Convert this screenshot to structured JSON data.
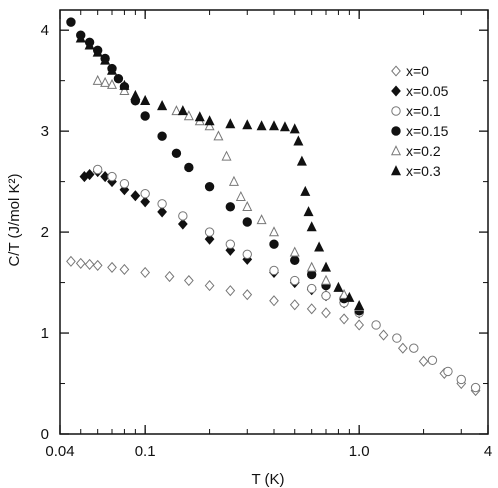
{
  "chart_data": {
    "type": "scatter",
    "xscale": "log",
    "xlim": [
      0.04,
      4
    ],
    "ylim": [
      0,
      4.2
    ],
    "xlabel": "T (K)",
    "ylabel": "C/T (J/mol K²)",
    "xticks": [
      {
        "value": 0.04,
        "label": "0.04"
      },
      {
        "value": 0.1,
        "label": "0.1"
      },
      {
        "value": 1.0,
        "label": "1.0"
      },
      {
        "value": 4,
        "label": "4"
      }
    ],
    "yticks": [
      {
        "value": 0,
        "label": "0"
      },
      {
        "value": 1,
        "label": "1"
      },
      {
        "value": 2,
        "label": "2"
      },
      {
        "value": 3,
        "label": "3"
      },
      {
        "value": 4,
        "label": "4"
      }
    ],
    "grid": false,
    "legend_position": "top-right",
    "series": [
      {
        "name": "x=0",
        "marker": "diamond-open",
        "points": [
          [
            0.045,
            1.71
          ],
          [
            0.05,
            1.69
          ],
          [
            0.055,
            1.68
          ],
          [
            0.06,
            1.67
          ],
          [
            0.07,
            1.65
          ],
          [
            0.08,
            1.63
          ],
          [
            0.1,
            1.6
          ],
          [
            0.13,
            1.56
          ],
          [
            0.16,
            1.52
          ],
          [
            0.2,
            1.47
          ],
          [
            0.25,
            1.42
          ],
          [
            0.3,
            1.38
          ],
          [
            0.4,
            1.32
          ],
          [
            0.5,
            1.28
          ],
          [
            0.6,
            1.24
          ],
          [
            0.7,
            1.2
          ],
          [
            0.85,
            1.14
          ],
          [
            1.0,
            1.08
          ],
          [
            1.3,
            0.98
          ],
          [
            1.6,
            0.85
          ],
          [
            2.0,
            0.72
          ],
          [
            2.5,
            0.6
          ],
          [
            3.0,
            0.5
          ],
          [
            3.5,
            0.43
          ]
        ]
      },
      {
        "name": "x=0.05",
        "marker": "diamond-filled",
        "points": [
          [
            0.052,
            2.55
          ],
          [
            0.055,
            2.57
          ],
          [
            0.06,
            2.6
          ],
          [
            0.065,
            2.55
          ],
          [
            0.07,
            2.5
          ],
          [
            0.08,
            2.42
          ],
          [
            0.09,
            2.36
          ],
          [
            0.1,
            2.3
          ],
          [
            0.12,
            2.2
          ],
          [
            0.15,
            2.08
          ],
          [
            0.2,
            1.93
          ],
          [
            0.25,
            1.82
          ],
          [
            0.3,
            1.73
          ],
          [
            0.4,
            1.6
          ],
          [
            0.5,
            1.5
          ],
          [
            0.6,
            1.43
          ],
          [
            0.7,
            1.37
          ],
          [
            0.85,
            1.3
          ],
          [
            1.0,
            1.2
          ]
        ]
      },
      {
        "name": "x=0.1",
        "marker": "circle-open",
        "points": [
          [
            0.06,
            2.62
          ],
          [
            0.07,
            2.55
          ],
          [
            0.08,
            2.48
          ],
          [
            0.1,
            2.38
          ],
          [
            0.12,
            2.28
          ],
          [
            0.15,
            2.16
          ],
          [
            0.2,
            2.0
          ],
          [
            0.25,
            1.88
          ],
          [
            0.3,
            1.78
          ],
          [
            0.4,
            1.62
          ],
          [
            0.5,
            1.52
          ],
          [
            0.6,
            1.44
          ],
          [
            0.7,
            1.37
          ],
          [
            0.85,
            1.3
          ],
          [
            1.0,
            1.2
          ],
          [
            1.2,
            1.08
          ],
          [
            1.5,
            0.95
          ],
          [
            1.8,
            0.85
          ],
          [
            2.2,
            0.73
          ],
          [
            2.6,
            0.62
          ],
          [
            3.0,
            0.54
          ],
          [
            3.5,
            0.46
          ]
        ]
      },
      {
        "name": "x=0.15",
        "marker": "circle-filled",
        "points": [
          [
            0.045,
            4.08
          ],
          [
            0.05,
            3.95
          ],
          [
            0.055,
            3.88
          ],
          [
            0.06,
            3.8
          ],
          [
            0.065,
            3.72
          ],
          [
            0.07,
            3.62
          ],
          [
            0.075,
            3.52
          ],
          [
            0.08,
            3.44
          ],
          [
            0.09,
            3.3
          ],
          [
            0.1,
            3.15
          ],
          [
            0.12,
            2.95
          ],
          [
            0.14,
            2.78
          ],
          [
            0.16,
            2.64
          ],
          [
            0.2,
            2.45
          ],
          [
            0.25,
            2.25
          ],
          [
            0.3,
            2.1
          ],
          [
            0.4,
            1.88
          ],
          [
            0.5,
            1.72
          ],
          [
            0.6,
            1.58
          ],
          [
            0.7,
            1.47
          ],
          [
            0.85,
            1.34
          ],
          [
            1.0,
            1.22
          ]
        ]
      },
      {
        "name": "x=0.2",
        "marker": "triangle-open",
        "points": [
          [
            0.06,
            3.5
          ],
          [
            0.065,
            3.48
          ],
          [
            0.07,
            3.46
          ],
          [
            0.08,
            3.4
          ],
          [
            0.09,
            3.35
          ],
          [
            0.1,
            3.3
          ],
          [
            0.12,
            3.25
          ],
          [
            0.14,
            3.2
          ],
          [
            0.16,
            3.15
          ],
          [
            0.18,
            3.1
          ],
          [
            0.2,
            3.05
          ],
          [
            0.22,
            2.95
          ],
          [
            0.24,
            2.75
          ],
          [
            0.26,
            2.5
          ],
          [
            0.28,
            2.35
          ],
          [
            0.3,
            2.25
          ],
          [
            0.35,
            2.12
          ],
          [
            0.4,
            2.0
          ],
          [
            0.5,
            1.8
          ],
          [
            0.6,
            1.65
          ],
          [
            0.7,
            1.52
          ],
          [
            0.85,
            1.38
          ],
          [
            1.0,
            1.26
          ]
        ]
      },
      {
        "name": "x=0.3",
        "marker": "triangle-filled",
        "points": [
          [
            0.05,
            3.92
          ],
          [
            0.055,
            3.85
          ],
          [
            0.06,
            3.78
          ],
          [
            0.065,
            3.7
          ],
          [
            0.07,
            3.6
          ],
          [
            0.08,
            3.45
          ],
          [
            0.09,
            3.35
          ],
          [
            0.1,
            3.3
          ],
          [
            0.12,
            3.25
          ],
          [
            0.15,
            3.2
          ],
          [
            0.18,
            3.14
          ],
          [
            0.2,
            3.1
          ],
          [
            0.25,
            3.07
          ],
          [
            0.3,
            3.06
          ],
          [
            0.35,
            3.05
          ],
          [
            0.4,
            3.05
          ],
          [
            0.45,
            3.04
          ],
          [
            0.5,
            3.02
          ],
          [
            0.52,
            2.9
          ],
          [
            0.54,
            2.7
          ],
          [
            0.56,
            2.4
          ],
          [
            0.58,
            2.2
          ],
          [
            0.6,
            2.05
          ],
          [
            0.65,
            1.85
          ],
          [
            0.7,
            1.65
          ],
          [
            0.8,
            1.45
          ],
          [
            0.9,
            1.35
          ],
          [
            1.0,
            1.27
          ]
        ]
      }
    ]
  }
}
